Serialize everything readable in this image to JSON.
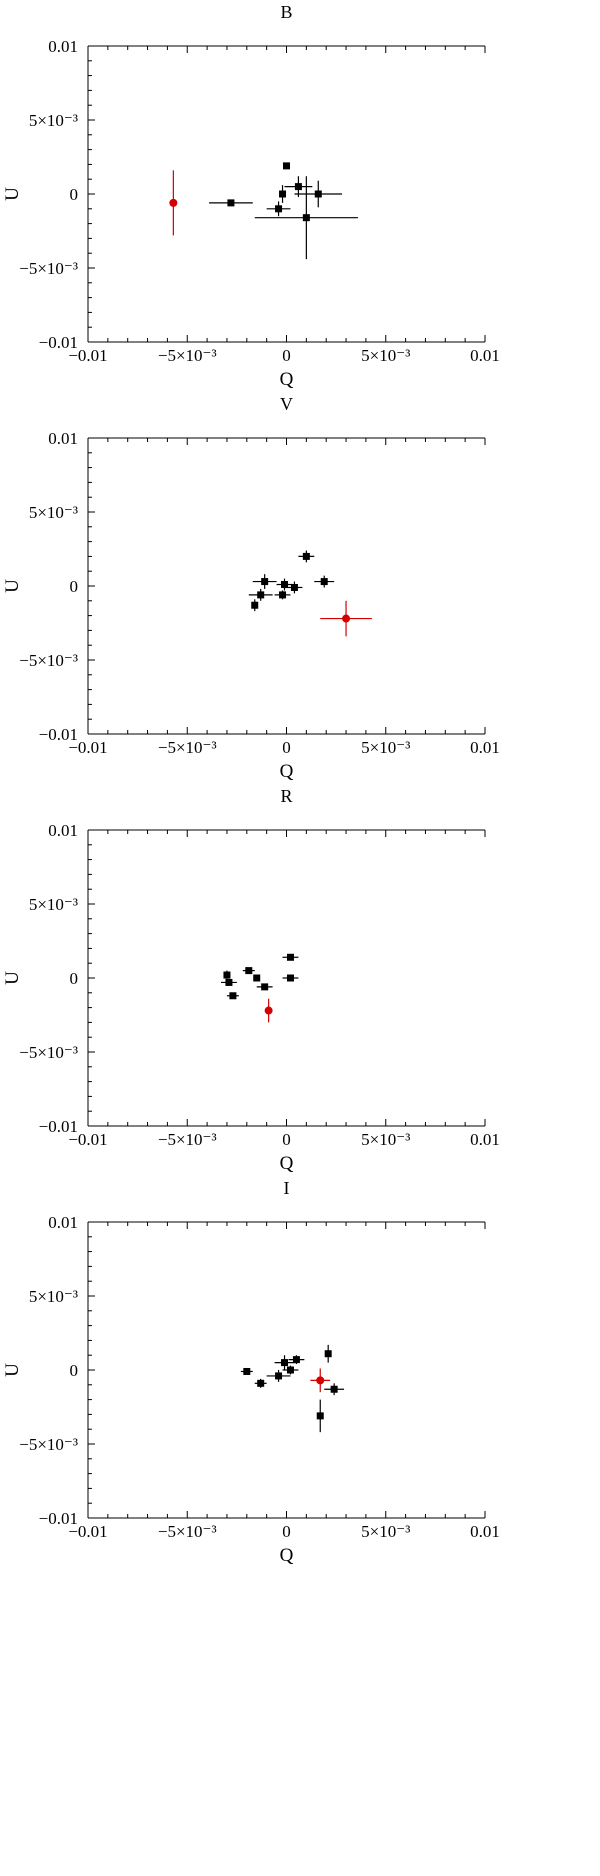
{
  "chart_data": [
    {
      "type": "scatter",
      "title": "B",
      "xlabel": "Q",
      "ylabel": "U",
      "xlim": [
        -0.01,
        0.01
      ],
      "ylim": [
        -0.01,
        0.01
      ],
      "xticks": [
        "−0.01",
        "−5×10⁻³",
        "0",
        "5×10⁻³",
        "0.01"
      ],
      "yticks": [
        "−0.01",
        "−5×10⁻³",
        "0",
        "5×10⁻³",
        "0.01"
      ],
      "series": [
        {
          "color": "#000000",
          "marker": "square",
          "points": [
            {
              "x": -0.0028,
              "y": -0.0006,
              "xerr": 0.0011,
              "yerr": 0
            },
            {
              "x": 0.0,
              "y": 0.0019,
              "xerr": 0,
              "yerr": 0
            },
            {
              "x": 0.0006,
              "y": 0.0005,
              "xerr": 0.0007,
              "yerr": 0.0007
            },
            {
              "x": 0.0016,
              "y": 0.0,
              "xerr": 0.0012,
              "yerr": 0.0009
            },
            {
              "x": -0.0002,
              "y": 0.0,
              "xerr": 0,
              "yerr": 0.0006
            },
            {
              "x": -0.0004,
              "y": -0.001,
              "xerr": 0.0006,
              "yerr": 0.0005
            },
            {
              "x": 0.001,
              "y": -0.0016,
              "xerr": 0.0026,
              "yerr": 0.0028
            }
          ]
        },
        {
          "color": "#d40000",
          "marker": "circle",
          "points": [
            {
              "x": -0.0057,
              "y": -0.0006,
              "xerr": 0,
              "yerr": 0.0022
            }
          ]
        }
      ]
    },
    {
      "type": "scatter",
      "title": "V",
      "xlabel": "Q",
      "ylabel": "U",
      "xlim": [
        -0.01,
        0.01
      ],
      "ylim": [
        -0.01,
        0.01
      ],
      "xticks": [
        "−0.01",
        "−5×10⁻³",
        "0",
        "5×10⁻³",
        "0.01"
      ],
      "yticks": [
        "−0.01",
        "−5×10⁻³",
        "0",
        "5×10⁻³",
        "0.01"
      ],
      "series": [
        {
          "color": "#000000",
          "marker": "square",
          "points": [
            {
              "x": 0.001,
              "y": 0.002,
              "xerr": 0.0004,
              "yerr": 0.0004
            },
            {
              "x": -0.0011,
              "y": 0.0003,
              "xerr": 0.0006,
              "yerr": 0.0005
            },
            {
              "x": -0.0001,
              "y": 0.0001,
              "xerr": 0.0004,
              "yerr": 0.0004
            },
            {
              "x": 0.0004,
              "y": -0.0001,
              "xerr": 0.0004,
              "yerr": 0.0004
            },
            {
              "x": 0.0019,
              "y": 0.0003,
              "xerr": 0.0005,
              "yerr": 0.0004
            },
            {
              "x": -0.0013,
              "y": -0.0006,
              "xerr": 0.0006,
              "yerr": 0.0004
            },
            {
              "x": -0.0002,
              "y": -0.0006,
              "xerr": 0.0004,
              "yerr": 0.0003
            },
            {
              "x": -0.0016,
              "y": -0.0013,
              "xerr": 0,
              "yerr": 0.0004
            }
          ]
        },
        {
          "color": "#d40000",
          "marker": "circle",
          "points": [
            {
              "x": 0.003,
              "y": -0.0022,
              "xerr": 0.0013,
              "yerr": 0.0012
            }
          ]
        }
      ]
    },
    {
      "type": "scatter",
      "title": "R",
      "xlabel": "Q",
      "ylabel": "U",
      "xlim": [
        -0.01,
        0.01
      ],
      "ylim": [
        -0.01,
        0.01
      ],
      "xticks": [
        "−0.01",
        "−5×10⁻³",
        "0",
        "5×10⁻³",
        "0.01"
      ],
      "yticks": [
        "−0.01",
        "−5×10⁻³",
        "0",
        "5×10⁻³",
        "0.01"
      ],
      "series": [
        {
          "color": "#000000",
          "marker": "square",
          "points": [
            {
              "x": -0.003,
              "y": 0.0002,
              "xerr": 0,
              "yerr": 0.0003
            },
            {
              "x": -0.0029,
              "y": -0.0003,
              "xerr": 0.0004,
              "yerr": 0
            },
            {
              "x": -0.0027,
              "y": -0.0012,
              "xerr": 0.0003,
              "yerr": 0
            },
            {
              "x": -0.0019,
              "y": 0.0005,
              "xerr": 0.0003,
              "yerr": 0.0002
            },
            {
              "x": -0.0015,
              "y": 0.0,
              "xerr": 0,
              "yerr": 0
            },
            {
              "x": -0.0011,
              "y": -0.0006,
              "xerr": 0.0004,
              "yerr": 0.0002
            },
            {
              "x": 0.0002,
              "y": 0.0014,
              "xerr": 0.0004,
              "yerr": 0
            },
            {
              "x": 0.0002,
              "y": 0.0,
              "xerr": 0.0004,
              "yerr": 0
            }
          ]
        },
        {
          "color": "#d40000",
          "marker": "circle",
          "points": [
            {
              "x": -0.0009,
              "y": -0.0022,
              "xerr": 0,
              "yerr": 0.0008
            }
          ]
        }
      ]
    },
    {
      "type": "scatter",
      "title": "I",
      "xlabel": "Q",
      "ylabel": "U",
      "xlim": [
        -0.01,
        0.01
      ],
      "ylim": [
        -0.01,
        0.01
      ],
      "xticks": [
        "−0.01",
        "−5×10⁻³",
        "0",
        "5×10⁻³",
        "0.01"
      ],
      "yticks": [
        "−0.01",
        "−5×10⁻³",
        "0",
        "5×10⁻³",
        "0.01"
      ],
      "series": [
        {
          "color": "#000000",
          "marker": "square",
          "points": [
            {
              "x": -0.002,
              "y": -0.0001,
              "xerr": 0.0003,
              "yerr": 0
            },
            {
              "x": -0.0013,
              "y": -0.0009,
              "xerr": 0.0003,
              "yerr": 0.0003
            },
            {
              "x": -0.0004,
              "y": -0.0004,
              "xerr": 0.0006,
              "yerr": 0.0004
            },
            {
              "x": -0.0001,
              "y": 0.0005,
              "xerr": 0.0005,
              "yerr": 0.0005
            },
            {
              "x": 0.0002,
              "y": 0.0,
              "xerr": 0.0004,
              "yerr": 0.0003
            },
            {
              "x": 0.0005,
              "y": 0.0007,
              "xerr": 0.0004,
              "yerr": 0.0003
            },
            {
              "x": 0.0021,
              "y": 0.0011,
              "xerr": 0,
              "yerr": 0.0006
            },
            {
              "x": 0.0024,
              "y": -0.0013,
              "xerr": 0.0005,
              "yerr": 0.0004
            },
            {
              "x": 0.0017,
              "y": -0.0031,
              "xerr": 0,
              "yerr": 0.0011
            }
          ]
        },
        {
          "color": "#d40000",
          "marker": "circle",
          "points": [
            {
              "x": 0.0017,
              "y": -0.0007,
              "xerr": 0.0005,
              "yerr": 0.0008
            }
          ]
        }
      ]
    }
  ]
}
